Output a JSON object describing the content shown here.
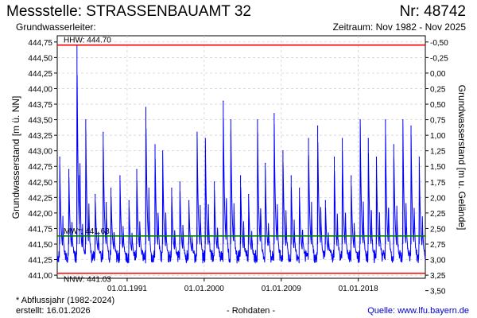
{
  "header": {
    "title": "Messstelle: STRASSENBAUAMT 32",
    "number": "Nr: 48742",
    "aquifer": "Grundwasserleiter:",
    "period": "Zeitraum: Nov 1982 - Nov 2025"
  },
  "footer": {
    "footnote": "* Abflussjahr (1982-2024)",
    "created": "erstellt:  16.01.2026",
    "rohdaten": "- Rohdaten -",
    "source": "Quelle:  www.lfu.bayern.de"
  },
  "colors": {
    "series": "#0000ff",
    "extremes": "#ff0000",
    "mean": "#008000",
    "grid": "#cccccc"
  },
  "chart_data": {
    "type": "line",
    "xlabel": "",
    "ylabel": "Grundwasserstand [m ü. NN]",
    "y2label": "Grundwasserstand [m u. Gelände]",
    "x_range": [
      "1982-11-01",
      "2025-11-01"
    ],
    "x_ticks": [
      {
        "date": "1991-01-01",
        "label": "01.01.1991"
      },
      {
        "date": "2000-01-01",
        "label": "01.01.2000"
      },
      {
        "date": "2009-01-01",
        "label": "01.01.2009"
      },
      {
        "date": "2018-01-01",
        "label": "01.01.2018"
      }
    ],
    "ylim": [
      440.95,
      444.85
    ],
    "y_ticks": [
      "441,00",
      "441,25",
      "441,50",
      "441,75",
      "442,00",
      "442,25",
      "442,50",
      "442,75",
      "443,00",
      "443,25",
      "443,50",
      "443,75",
      "444,00",
      "444,25",
      "444,50",
      "444,75"
    ],
    "y2_ticks": [
      "-0,50",
      "-0,25",
      "0,00",
      "0,25",
      "0,50",
      "0,75",
      "1,00",
      "1,25",
      "1,50",
      "1,75",
      "2,00",
      "2,25",
      "2,50",
      "2,75",
      "3,00",
      "3,25",
      "3,50"
    ],
    "y2_offset": 444.25,
    "grid": true,
    "reference_lines": [
      {
        "label": "HHW: 444.70",
        "value": 444.7,
        "color": "#ff0000"
      },
      {
        "label": "MW*: 441.63",
        "value": 441.63,
        "color": "#008000"
      },
      {
        "label": "NNW: 441.03",
        "value": 441.03,
        "color": "#ff0000"
      }
    ],
    "series": [
      {
        "color": "#0000ff",
        "baseline": 441.3,
        "points": [
          [
            "1983-02-15",
            442.9
          ],
          [
            "1984-03-10",
            442.7
          ],
          [
            "1985-02-20",
            444.7
          ],
          [
            "1985-06-05",
            442.6
          ],
          [
            "1986-03-01",
            443.5
          ],
          [
            "1987-04-10",
            442.3
          ],
          [
            "1988-03-15",
            443.3
          ],
          [
            "1989-02-10",
            442.4
          ],
          [
            "1990-03-01",
            442.6
          ],
          [
            "1991-03-20",
            442.2
          ],
          [
            "1992-02-15",
            442.7
          ],
          [
            "1993-03-10",
            443.7
          ],
          [
            "1994-04-05",
            443.1
          ],
          [
            "1995-02-25",
            443.0
          ],
          [
            "1996-03-15",
            442.4
          ],
          [
            "1997-02-28",
            442.5
          ],
          [
            "1998-03-20",
            442.2
          ],
          [
            "1999-03-05",
            443.3
          ],
          [
            "2000-02-20",
            443.2
          ],
          [
            "2001-03-10",
            442.5
          ],
          [
            "2002-03-25",
            443.8
          ],
          [
            "2003-02-10",
            443.5
          ],
          [
            "2004-04-01",
            442.6
          ],
          [
            "2005-03-10",
            442.3
          ],
          [
            "2006-03-25",
            443.5
          ],
          [
            "2007-02-20",
            442.8
          ],
          [
            "2008-03-05",
            443.6
          ],
          [
            "2009-03-15",
            443.0
          ],
          [
            "2010-03-01",
            442.6
          ],
          [
            "2011-02-15",
            442.4
          ],
          [
            "2012-03-10",
            443.2
          ],
          [
            "2013-04-05",
            443.4
          ],
          [
            "2014-03-01",
            442.2
          ],
          [
            "2015-03-15",
            442.9
          ],
          [
            "2016-02-20",
            443.2
          ],
          [
            "2017-03-05",
            442.6
          ],
          [
            "2018-03-25",
            443.5
          ],
          [
            "2019-03-05",
            443.2
          ],
          [
            "2020-02-15",
            442.9
          ],
          [
            "2021-03-05",
            443.5
          ],
          [
            "2022-02-25",
            443.1
          ],
          [
            "2023-03-20",
            443.5
          ],
          [
            "2024-03-01",
            443.4
          ],
          [
            "2025-02-15",
            442.9
          ]
        ]
      }
    ]
  }
}
